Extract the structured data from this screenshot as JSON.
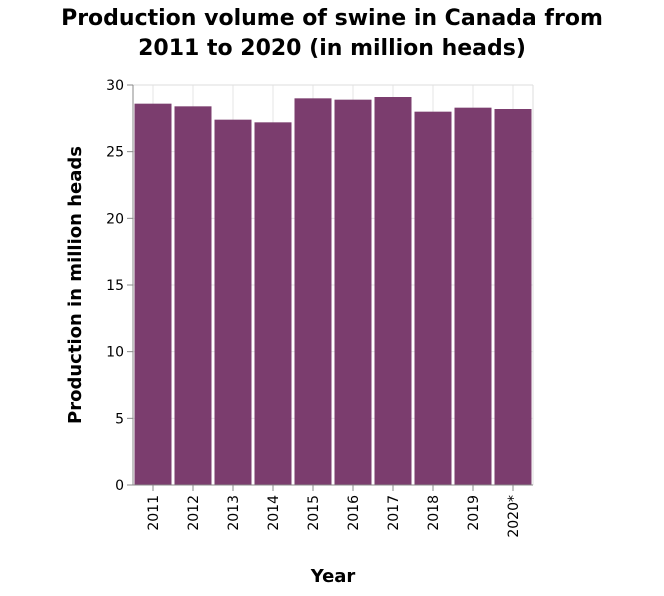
{
  "chart_data": {
    "type": "bar",
    "title_lines": [
      "Production volume of swine in Canada from",
      "2011 to 2020 (in million heads)"
    ],
    "xlabel": "Year",
    "ylabel": "Production in million heads",
    "categories": [
      "2011",
      "2012",
      "2013",
      "2014",
      "2015",
      "2016",
      "2017",
      "2018",
      "2019",
      "2020*"
    ],
    "values": [
      28.6,
      28.4,
      27.4,
      27.2,
      29.0,
      28.9,
      29.1,
      28.0,
      28.3,
      28.2
    ],
    "ylim": [
      0,
      30
    ],
    "yticks": [
      0,
      5,
      10,
      15,
      20,
      25,
      30
    ],
    "grid": true,
    "bar_color": "#7b3d6e"
  }
}
